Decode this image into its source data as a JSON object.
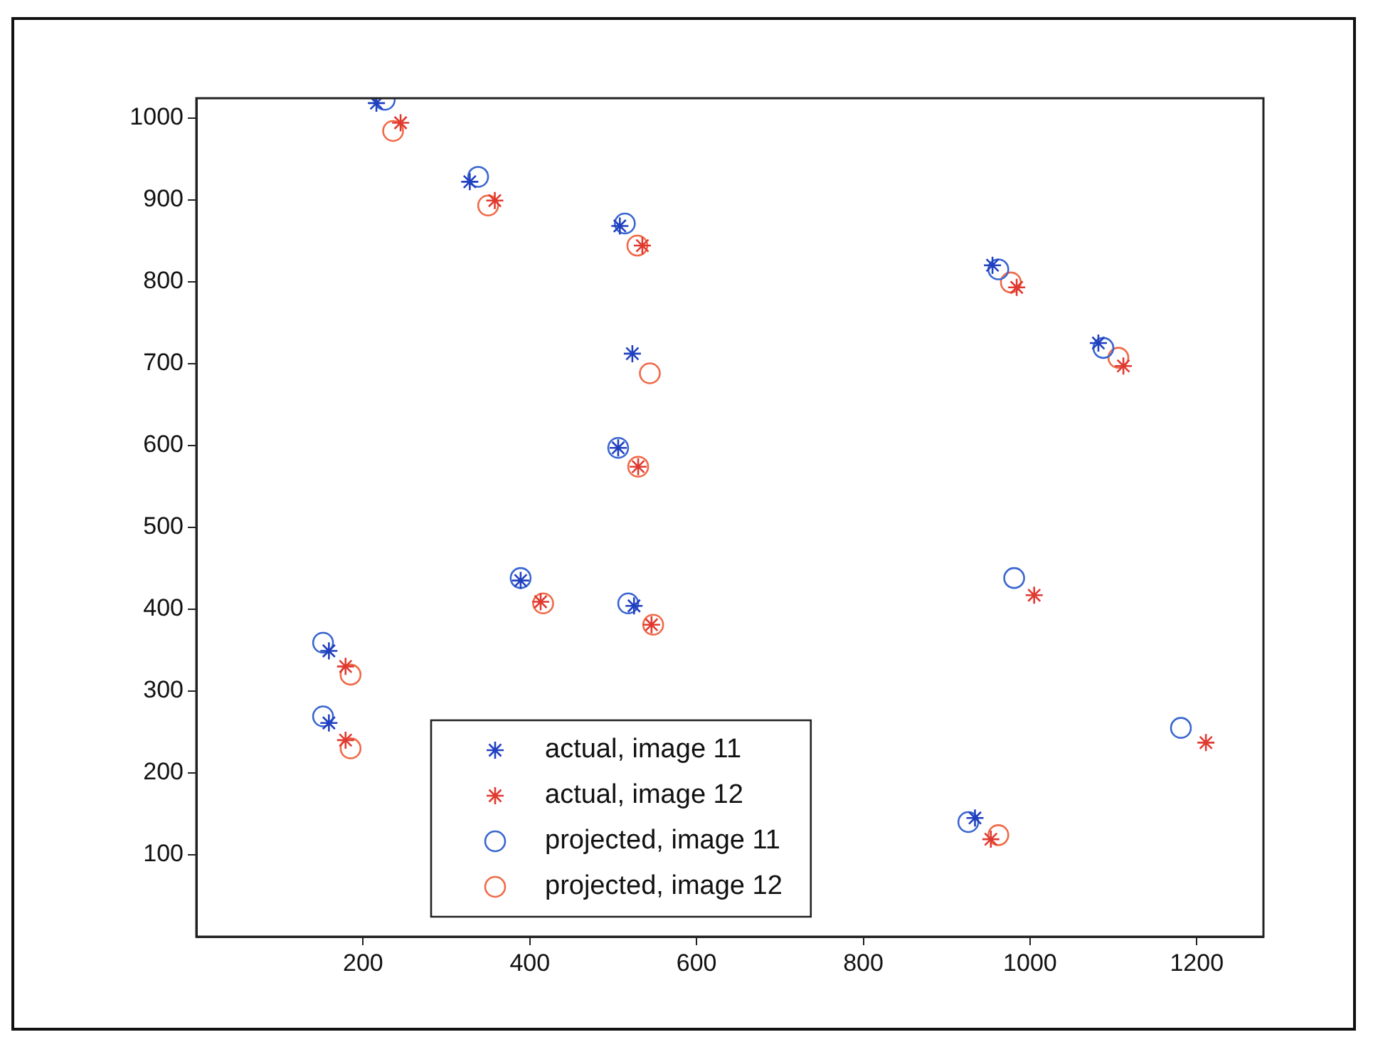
{
  "chart_data": {
    "type": "scatter",
    "xlim": [
      0,
      1280
    ],
    "ylim": [
      0,
      1024
    ],
    "xticks": [
      200,
      400,
      600,
      800,
      1000,
      1200
    ],
    "yticks": [
      100,
      200,
      300,
      400,
      500,
      600,
      700,
      800,
      900,
      1000
    ],
    "grid": false,
    "legend": "bottom",
    "series": [
      {
        "name": "actual, image 11",
        "type": "scatter",
        "marker": "cross",
        "color": "#2040c0",
        "x": [
          216,
          328,
          508,
          523,
          506,
          955,
          1082,
          159,
          159,
          389,
          525,
          934
        ],
        "values": [
          1018,
          922,
          868,
          712,
          597,
          820,
          725,
          349,
          261,
          435,
          404,
          145
        ]
      },
      {
        "name": "actual, image 12",
        "type": "scatter",
        "marker": "cross",
        "color": "#e03a30",
        "x": [
          245,
          358,
          535,
          530,
          984,
          1112,
          179,
          179,
          413,
          546,
          1005,
          1211,
          953
        ],
        "values": [
          994,
          899,
          844,
          574,
          793,
          697,
          330,
          240,
          409,
          381,
          417,
          237,
          119
        ]
      },
      {
        "name": "projected, image 11",
        "type": "scatter",
        "marker": "circle",
        "color": "#3a66d0",
        "x": [
          226,
          338,
          514,
          506,
          962,
          1088,
          152,
          152,
          389,
          518,
          981,
          1181,
          926
        ],
        "values": [
          1022,
          928,
          871,
          597,
          815,
          719,
          359,
          269,
          438,
          407,
          438,
          255,
          140
        ]
      },
      {
        "name": "projected, image 12",
        "type": "scatter",
        "marker": "circle",
        "color": "#f06a48",
        "x": [
          236,
          350,
          529,
          544,
          530,
          977,
          1106,
          185,
          185,
          416,
          548,
          962
        ],
        "values": [
          984,
          893,
          844,
          688,
          574,
          799,
          707,
          320,
          230,
          407,
          381,
          124
        ]
      }
    ]
  }
}
